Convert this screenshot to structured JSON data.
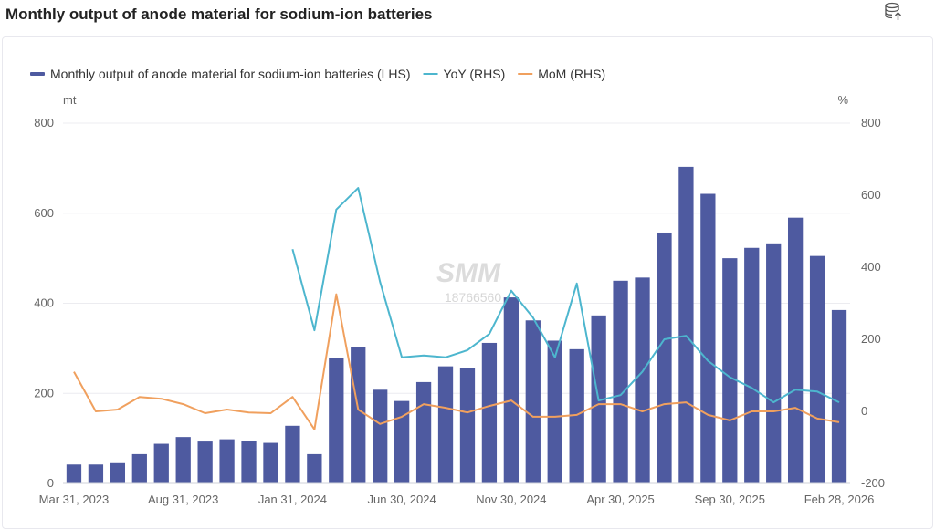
{
  "page": {
    "title": "Monthly output of anode material for sodium-ion batteries"
  },
  "icons": {
    "export": "database-export-icon"
  },
  "watermark": {
    "logo": "SMM",
    "text": "18766560"
  },
  "chart_data": {
    "type": "bar+line",
    "legend_position": "top-left",
    "grid": true,
    "x_tick_labels": [
      "Mar 31, 2023",
      "Aug 31, 2023",
      "Jan 31, 2024",
      "Jun 30, 2024",
      "Nov 30, 2024",
      "Apr 30, 2025",
      "Sep 30, 2025",
      "Feb 28, 2026"
    ],
    "categories": [
      "2023-03",
      "2023-04",
      "2023-05",
      "2023-06",
      "2023-07",
      "2023-08",
      "2023-09",
      "2023-10",
      "2023-11",
      "2023-12",
      "2024-01",
      "2024-02",
      "2024-03",
      "2024-04",
      "2024-05",
      "2024-06",
      "2024-07",
      "2024-08",
      "2024-09",
      "2024-10",
      "2024-11",
      "2024-12",
      "2025-01",
      "2025-02",
      "2025-03",
      "2025-04",
      "2025-05",
      "2025-06",
      "2025-07",
      "2025-08",
      "2025-09",
      "2025-10",
      "2025-11",
      "2025-12",
      "2026-01",
      "2026-02"
    ],
    "y_left": {
      "unit": "mt",
      "min": 0,
      "max": 800,
      "ticks": [
        0,
        200,
        400,
        600,
        800
      ]
    },
    "y_right": {
      "unit": "%",
      "min": -200,
      "max": 800,
      "ticks": [
        -200,
        0,
        200,
        400,
        600,
        800
      ]
    },
    "series": [
      {
        "name": "Monthly  output of anode material for sodium-ion batteries (LHS)",
        "kind": "bar",
        "axis": "left",
        "color": "#4e5aa0",
        "values": [
          42,
          42,
          45,
          65,
          88,
          103,
          93,
          98,
          95,
          90,
          128,
          65,
          278,
          302,
          208,
          183,
          225,
          260,
          256,
          312,
          413,
          362,
          317,
          298,
          373,
          450,
          457,
          557,
          703,
          643,
          500,
          523,
          533,
          590,
          505,
          385
        ]
      },
      {
        "name": "YoY (RHS)",
        "kind": "line",
        "axis": "right",
        "color": "#4db6ce",
        "values": [
          null,
          null,
          null,
          null,
          null,
          null,
          null,
          null,
          null,
          null,
          450,
          225,
          560,
          620,
          360,
          150,
          155,
          150,
          170,
          215,
          335,
          260,
          150,
          355,
          30,
          45,
          110,
          200,
          210,
          140,
          95,
          65,
          25,
          60,
          55,
          25
        ]
      },
      {
        "name": "MoM (RHS)",
        "kind": "line",
        "axis": "right",
        "color": "#f0a05e",
        "values": [
          110,
          0,
          5,
          40,
          35,
          20,
          -5,
          5,
          -3,
          -5,
          40,
          -50,
          325,
          5,
          -35,
          -15,
          20,
          10,
          -3,
          15,
          30,
          -15,
          -15,
          -10,
          20,
          20,
          0,
          20,
          25,
          -10,
          -25,
          0,
          0,
          10,
          -20,
          -30
        ]
      }
    ]
  }
}
